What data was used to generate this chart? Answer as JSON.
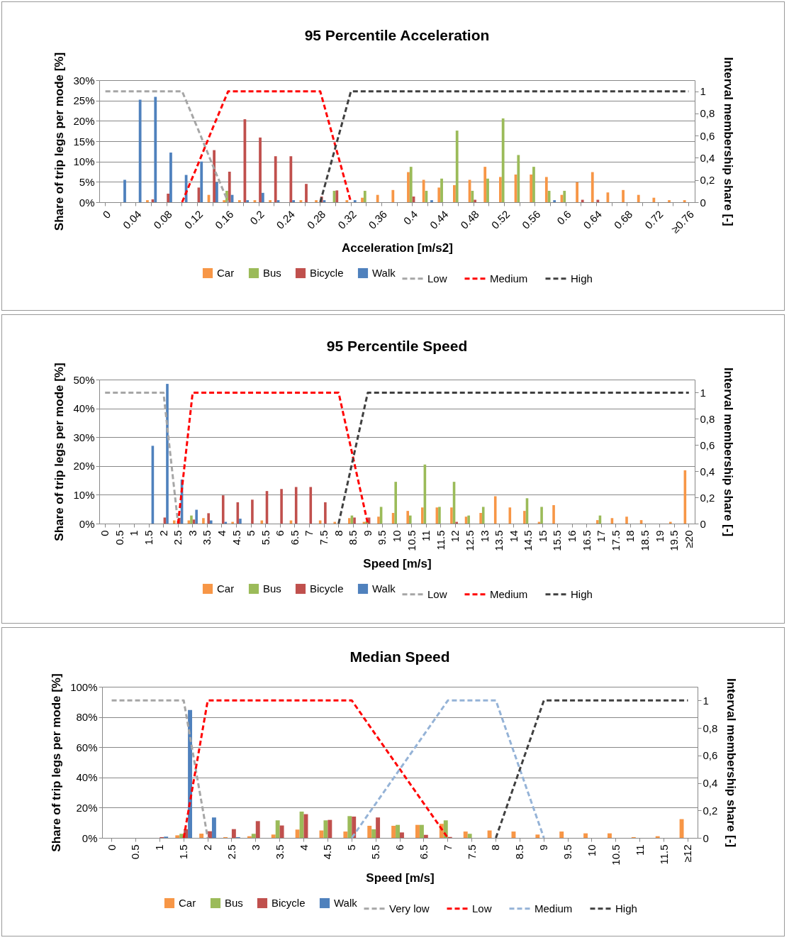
{
  "chart_data": [
    {
      "type": "bar",
      "title": "95 Percentile Acceleration",
      "xlabel": "Acceleration [m/s2]",
      "ylabel": "Share of trip legs per mode [%]",
      "y2label": "Interval membership share [-]",
      "categories": [
        "0",
        null,
        "0.04",
        null,
        "0.08",
        null,
        "0.12",
        null,
        "0.16",
        null,
        "0.2",
        null,
        "0.24",
        null,
        "0.28",
        null,
        "0.32",
        null,
        "0.36",
        null,
        "0.4",
        null,
        "0.44",
        null,
        "0.48",
        null,
        "0.52",
        null,
        "0.56",
        null,
        "0.6",
        null,
        "0.64",
        null,
        "0.68",
        null,
        "0.72",
        null,
        "≥0.76"
      ],
      "ylim": [
        0,
        30
      ],
      "yticks": [
        {
          "value": 0,
          "label": "0%"
        },
        {
          "value": 5,
          "label": "5%"
        },
        {
          "value": 10,
          "label": "10%"
        },
        {
          "value": 15,
          "label": "15%"
        },
        {
          "value": 20,
          "label": "20%"
        },
        {
          "value": 25,
          "label": "25%"
        },
        {
          "value": 30,
          "label": "30%"
        }
      ],
      "y2lim": [
        0,
        1.1
      ],
      "y2ticks": [
        {
          "value": 0,
          "label": "0"
        },
        {
          "value": 0.2,
          "label": "0,2"
        },
        {
          "value": 0.4,
          "label": "0,4"
        },
        {
          "value": 0.6,
          "label": "0,6"
        },
        {
          "value": 0.8,
          "label": "0,8"
        },
        {
          "value": 1,
          "label": "1"
        }
      ],
      "grid": "y",
      "legend": "bottom",
      "series": [
        {
          "name": "Car",
          "color": "#f79646",
          "values": [
            null,
            null,
            null,
            0.5,
            null,
            null,
            null,
            1.8,
            0.5,
            0.5,
            0.5,
            0.5,
            null,
            0.5,
            0.5,
            null,
            0.5,
            1.1,
            1.8,
            3.0,
            7.4,
            5.5,
            3.6,
            4.2,
            5.5,
            8.7,
            6.2,
            6.8,
            6.8,
            6.2,
            1.8,
            4.9,
            7.4,
            2.4,
            3.0,
            1.8,
            1.1,
            0.5,
            0.5
          ]
        },
        {
          "name": "Bus",
          "color": "#9bbb59",
          "values": [
            null,
            null,
            null,
            null,
            null,
            null,
            null,
            null,
            2.8,
            null,
            null,
            null,
            null,
            null,
            null,
            2.8,
            null,
            2.8,
            null,
            null,
            8.7,
            2.8,
            5.8,
            17.6,
            2.8,
            5.8,
            20.6,
            11.6,
            8.7,
            2.8,
            2.8,
            null,
            null,
            null,
            null,
            null,
            null,
            null,
            null
          ]
        },
        {
          "name": "Bicycle",
          "color": "#c0504d",
          "values": [
            null,
            null,
            null,
            0.7,
            2.1,
            null,
            3.6,
            12.8,
            7.5,
            20.4,
            15.9,
            11.3,
            11.3,
            4.5,
            1.4,
            2.9,
            null,
            null,
            null,
            null,
            1.4,
            null,
            null,
            null,
            0.6,
            null,
            null,
            null,
            null,
            null,
            null,
            0.6,
            0.6,
            null,
            null,
            null,
            null,
            null,
            null
          ]
        },
        {
          "name": "Walk",
          "color": "#4f81bd",
          "values": [
            null,
            5.5,
            25.2,
            25.9,
            12.2,
            6.7,
            10.0,
            4.9,
            1.8,
            0.5,
            2.3,
            0.5,
            0.5,
            null,
            0.5,
            null,
            0.5,
            null,
            null,
            null,
            null,
            0.5,
            null,
            null,
            null,
            null,
            null,
            null,
            null,
            0.5,
            null,
            null,
            null,
            null,
            null,
            null,
            null,
            null,
            null
          ]
        },
        {
          "name": "Low",
          "type": "line",
          "axis": "y2",
          "line_style": "dashed",
          "color": "#a6a6a6",
          "values": [
            1,
            1,
            1,
            1,
            1,
            1,
            0.67,
            0.33,
            0,
            null,
            null,
            null,
            null,
            null,
            null,
            null,
            null,
            null,
            null,
            null,
            null,
            null,
            null,
            null,
            null,
            null,
            null,
            null,
            null,
            null,
            null,
            null,
            null,
            null,
            null,
            null,
            null,
            null,
            null
          ]
        },
        {
          "name": "Medium",
          "type": "line",
          "axis": "y2",
          "line_style": "dashed",
          "color": "#ff0000",
          "values": [
            null,
            null,
            null,
            null,
            null,
            0,
            0.33,
            0.67,
            1,
            1,
            1,
            1,
            1,
            1,
            1,
            0.5,
            0,
            null,
            null,
            null,
            null,
            null,
            null,
            null,
            null,
            null,
            null,
            null,
            null,
            null,
            null,
            null,
            null,
            null,
            null,
            null,
            null,
            null,
            null
          ]
        },
        {
          "name": "High",
          "type": "line",
          "axis": "y2",
          "line_style": "dashed",
          "color": "#404040",
          "values": [
            null,
            null,
            null,
            null,
            null,
            null,
            null,
            null,
            null,
            null,
            null,
            null,
            null,
            null,
            0,
            0.5,
            1,
            1,
            1,
            1,
            1,
            1,
            1,
            1,
            1,
            1,
            1,
            1,
            1,
            1,
            1,
            1,
            1,
            1,
            1,
            1,
            1,
            1,
            1
          ]
        }
      ]
    },
    {
      "type": "bar",
      "title": "95 Percentile Speed",
      "xlabel": "Speed [m/s]",
      "ylabel": "Share of trip legs per mode [%]",
      "y2label": "Interval membership share [-]",
      "categories": [
        "0",
        "0.5",
        "1",
        "1.5",
        "2",
        "2.5",
        "3",
        "3.5",
        "4",
        "4.5",
        "5",
        "5.5",
        "6",
        "6.5",
        "7",
        "7.5",
        "8",
        "8.5",
        "9",
        "9.5",
        "10",
        "10.5",
        "11",
        "11.5",
        "12",
        "12.5",
        "13",
        "13.5",
        "14",
        "14.5",
        "15",
        "15.5",
        "16",
        "16.5",
        "17",
        "17.5",
        "18",
        "18.5",
        "19",
        "19.5",
        "≥20"
      ],
      "ylim": [
        0,
        50
      ],
      "yticks": [
        {
          "value": 0,
          "label": "0%"
        },
        {
          "value": 10,
          "label": "10%"
        },
        {
          "value": 20,
          "label": "20%"
        },
        {
          "value": 30,
          "label": "30%"
        },
        {
          "value": 40,
          "label": "40%"
        },
        {
          "value": 50,
          "label": "50%"
        }
      ],
      "y2lim": [
        0,
        1.1
      ],
      "y2ticks": [
        {
          "value": 0,
          "label": "0"
        },
        {
          "value": 0.2,
          "label": "0,2"
        },
        {
          "value": 0.4,
          "label": "0,4"
        },
        {
          "value": 0.6,
          "label": "0,6"
        },
        {
          "value": 0.8,
          "label": "0,8"
        },
        {
          "value": 1,
          "label": "1"
        }
      ],
      "grid": "y",
      "legend": "bottom",
      "series": [
        {
          "name": "Car",
          "color": "#f79646",
          "values": [
            null,
            null,
            null,
            null,
            null,
            1.1,
            1.1,
            1.9,
            null,
            0.6,
            null,
            1.1,
            null,
            1.1,
            null,
            1.1,
            0.6,
            1.9,
            0.6,
            2.4,
            3.7,
            4.4,
            5.6,
            5.6,
            5.6,
            2.4,
            3.7,
            9.5,
            5.6,
            4.4,
            0.6,
            6.4,
            null,
            null,
            1.2,
            1.9,
            2.4,
            1.2,
            null,
            0.6,
            18.5
          ]
        },
        {
          "name": "Bus",
          "color": "#9bbb59",
          "values": [
            null,
            null,
            null,
            null,
            null,
            null,
            2.8,
            null,
            null,
            null,
            null,
            null,
            null,
            null,
            null,
            null,
            null,
            2.8,
            0.7,
            5.8,
            14.5,
            2.8,
            20.5,
            5.8,
            14.5,
            2.8,
            5.8,
            null,
            null,
            8.8,
            5.8,
            null,
            null,
            null,
            2.8,
            null,
            null,
            null,
            null,
            null,
            null
          ]
        },
        {
          "name": "Bicycle",
          "color": "#c0504d",
          "values": [
            null,
            null,
            null,
            null,
            2.1,
            2.0,
            1.4,
            3.6,
            9.8,
            7.4,
            8.3,
            11.3,
            12.0,
            12.7,
            12.7,
            7.4,
            null,
            2.1,
            2.1,
            null,
            null,
            null,
            null,
            null,
            0.6,
            null,
            null,
            null,
            null,
            null,
            null,
            null,
            null,
            null,
            null,
            null,
            null,
            null,
            null,
            null,
            null
          ]
        },
        {
          "name": "Walk",
          "color": "#4f81bd",
          "values": [
            null,
            null,
            null,
            27.0,
            48.5,
            15.3,
            4.8,
            1.1,
            0.6,
            1.7,
            null,
            null,
            null,
            null,
            null,
            null,
            null,
            null,
            null,
            null,
            null,
            null,
            null,
            null,
            null,
            null,
            null,
            null,
            null,
            null,
            null,
            null,
            null,
            null,
            null,
            null,
            null,
            null,
            null,
            null,
            null
          ]
        },
        {
          "name": "Low",
          "type": "line",
          "axis": "y2",
          "line_style": "dashed",
          "color": "#a6a6a6",
          "values": [
            1,
            1,
            1,
            1,
            1,
            0,
            null,
            null,
            null,
            null,
            null,
            null,
            null,
            null,
            null,
            null,
            null,
            null,
            null,
            null,
            null,
            null,
            null,
            null,
            null,
            null,
            null,
            null,
            null,
            null,
            null,
            null,
            null,
            null,
            null,
            null,
            null,
            null,
            null,
            null,
            null
          ]
        },
        {
          "name": "Medium",
          "type": "line",
          "axis": "y2",
          "line_style": "dashed",
          "color": "#ff0000",
          "values": [
            null,
            null,
            null,
            null,
            null,
            0,
            1,
            1,
            1,
            1,
            1,
            1,
            1,
            1,
            1,
            1,
            1,
            0.5,
            0,
            null,
            null,
            null,
            null,
            null,
            null,
            null,
            null,
            null,
            null,
            null,
            null,
            null,
            null,
            null,
            null,
            null,
            null,
            null,
            null,
            null,
            null
          ]
        },
        {
          "name": "High",
          "type": "line",
          "axis": "y2",
          "line_style": "dashed",
          "color": "#404040",
          "values": [
            null,
            null,
            null,
            null,
            null,
            null,
            null,
            null,
            null,
            null,
            null,
            null,
            null,
            null,
            null,
            null,
            0,
            0.5,
            1,
            1,
            1,
            1,
            1,
            1,
            1,
            1,
            1,
            1,
            1,
            1,
            1,
            1,
            1,
            1,
            1,
            1,
            1,
            1,
            1,
            1,
            1
          ]
        }
      ]
    },
    {
      "type": "bar",
      "title": "Median Speed",
      "xlabel": "Speed [m/s]",
      "ylabel": "Share of trip legs per mode [%]",
      "y2label": "Interval membership share [-]",
      "categories": [
        "0",
        "0.5",
        "1",
        "1.5",
        "2",
        "2.5",
        "3",
        "3.5",
        "4",
        "4.5",
        "5",
        "5.5",
        "6",
        "6.5",
        "7",
        "7.5",
        "8",
        "8.5",
        "9",
        "9.5",
        "10",
        "10.5",
        "11",
        "11.5",
        "≥12"
      ],
      "ylim": [
        0,
        100
      ],
      "yticks": [
        {
          "value": 0,
          "label": "0%"
        },
        {
          "value": 20,
          "label": "20%"
        },
        {
          "value": 40,
          "label": "40%"
        },
        {
          "value": 60,
          "label": "60%"
        },
        {
          "value": 80,
          "label": "80%"
        },
        {
          "value": 100,
          "label": "100%"
        }
      ],
      "y2lim": [
        0,
        1.1
      ],
      "y2ticks": [
        {
          "value": 0,
          "label": "0"
        },
        {
          "value": 0.2,
          "label": "0,2"
        },
        {
          "value": 0.4,
          "label": "0,4"
        },
        {
          "value": 0.6,
          "label": "0,6"
        },
        {
          "value": 0.8,
          "label": "0,8"
        },
        {
          "value": 1,
          "label": "1"
        }
      ],
      "grid": "y",
      "legend": "bottom",
      "series": [
        {
          "name": "Car",
          "color": "#f79646",
          "values": [
            null,
            null,
            null,
            1.7,
            2.8,
            0.5,
            1.1,
            2.2,
            5.5,
            4.9,
            4.2,
            8.0,
            8.0,
            8.6,
            9.3,
            4.2,
            4.9,
            4.2,
            2.2,
            4.2,
            3.0,
            3.0,
            0.5,
            1.1,
            12.4
          ]
        },
        {
          "name": "Bus",
          "color": "#9bbb59",
          "values": [
            null,
            null,
            null,
            2.7,
            null,
            null,
            2.7,
            11.6,
            17.4,
            11.6,
            14.4,
            5.7,
            8.6,
            8.6,
            11.6,
            2.7,
            null,
            null,
            null,
            null,
            null,
            null,
            null,
            null,
            null
          ]
        },
        {
          "name": "Bicycle",
          "color": "#c0504d",
          "values": [
            null,
            null,
            0.5,
            5.8,
            4.4,
            5.8,
            11.1,
            8.2,
            15.7,
            11.9,
            14.1,
            13.5,
            3.6,
            2.0,
            0.6,
            null,
            null,
            null,
            null,
            null,
            null,
            null,
            null,
            null,
            null
          ]
        },
        {
          "name": "Walk",
          "color": "#4f81bd",
          "values": [
            null,
            null,
            0.8,
            84.6,
            13.5,
            0.5,
            null,
            null,
            null,
            null,
            null,
            null,
            null,
            null,
            null,
            null,
            null,
            null,
            null,
            null,
            null,
            null,
            null,
            null,
            null
          ]
        },
        {
          "name": "Very low",
          "type": "line",
          "axis": "y2",
          "line_style": "dashed",
          "color": "#a6a6a6",
          "values": [
            1,
            1,
            1,
            1,
            0,
            null,
            null,
            null,
            null,
            null,
            null,
            null,
            null,
            null,
            null,
            null,
            null,
            null,
            null,
            null,
            null,
            null,
            null,
            null,
            null
          ]
        },
        {
          "name": "Low",
          "type": "line",
          "axis": "y2",
          "line_style": "dashed",
          "color": "#ff0000",
          "values": [
            null,
            null,
            null,
            0,
            1,
            1,
            1,
            1,
            1,
            1,
            1,
            0.75,
            0.5,
            0.25,
            0,
            null,
            null,
            null,
            null,
            null,
            null,
            null,
            null,
            null,
            null
          ]
        },
        {
          "name": "Medium",
          "type": "line",
          "axis": "y2",
          "line_style": "dashed",
          "color": "#95b3d7",
          "values": [
            null,
            null,
            null,
            null,
            null,
            null,
            null,
            null,
            null,
            null,
            0,
            0.25,
            0.5,
            0.75,
            1,
            1,
            1,
            0.5,
            0,
            null,
            null,
            null,
            null,
            null,
            null
          ]
        },
        {
          "name": "High",
          "type": "line",
          "axis": "y2",
          "line_style": "dashed",
          "color": "#404040",
          "values": [
            null,
            null,
            null,
            null,
            null,
            null,
            null,
            null,
            null,
            null,
            null,
            null,
            null,
            null,
            null,
            null,
            0,
            0.5,
            1,
            1,
            1,
            1,
            1,
            1,
            1
          ]
        }
      ]
    }
  ]
}
